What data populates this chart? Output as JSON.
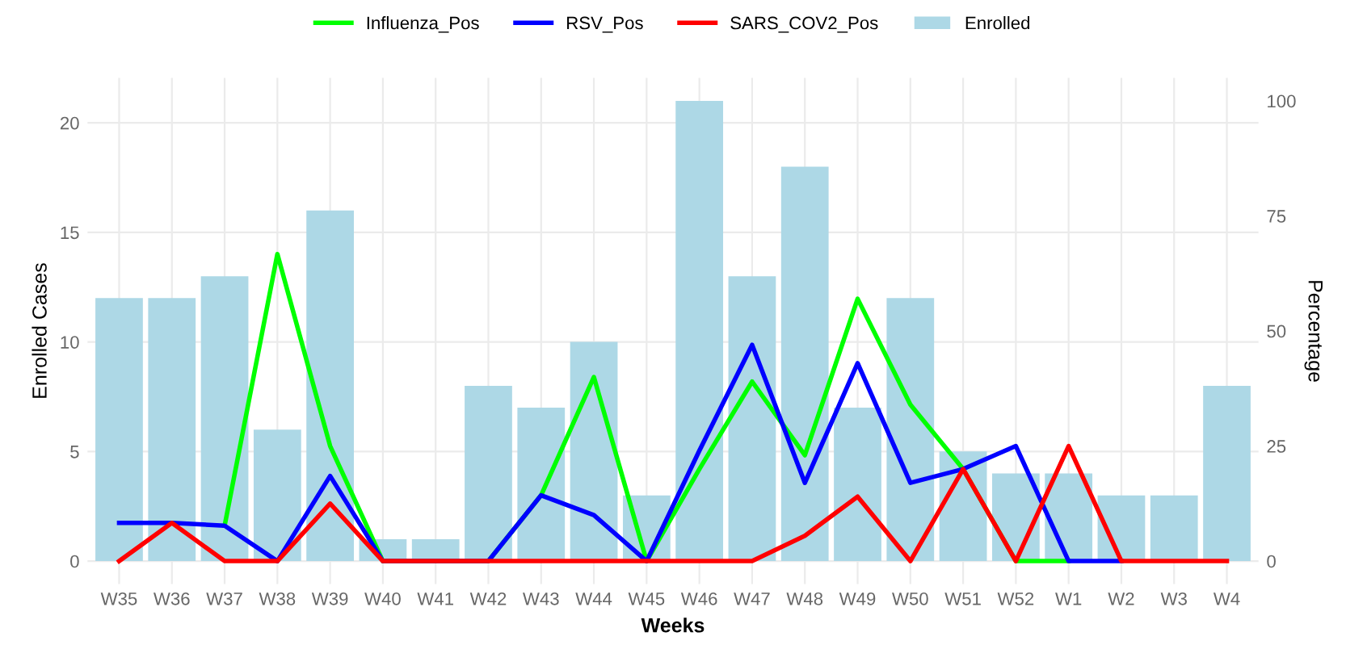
{
  "chart_data": {
    "type": "bar",
    "xlabel": "Weeks",
    "ylabel": "Enrolled Cases",
    "y2label": "Percentage",
    "categories": [
      "W35",
      "W36",
      "W37",
      "W38",
      "W39",
      "W40",
      "W41",
      "W42",
      "W43",
      "W44",
      "W45",
      "W46",
      "W47",
      "W48",
      "W49",
      "W50",
      "W51",
      "W52",
      "W1",
      "W2",
      "W3",
      "W4"
    ],
    "series": [
      {
        "name": "Enrolled",
        "color": "#add8e6",
        "values": [
          12,
          12,
          13,
          6,
          16,
          1,
          1,
          8,
          7,
          10,
          3,
          21,
          13,
          18,
          7,
          12,
          5,
          4,
          4,
          3,
          3,
          8
        ]
      },
      {
        "name": "Influenza_Pos",
        "type": "line",
        "axis": "y2",
        "color": "#00ff00",
        "values": [
          null,
          null,
          7.7,
          66.7,
          25,
          0,
          0,
          0,
          14.3,
          40,
          0,
          20,
          39,
          23,
          57,
          34,
          20,
          0,
          0,
          null,
          null,
          null
        ]
      },
      {
        "name": "RSV_Pos",
        "type": "line",
        "axis": "y2",
        "color": "#0000ff",
        "values": [
          8.3,
          8.3,
          7.7,
          0,
          18.5,
          0,
          0,
          0,
          14.3,
          10,
          0,
          24,
          47,
          17,
          43,
          17,
          20,
          25,
          0,
          0,
          null,
          null
        ]
      },
      {
        "name": "SARS_COV2_Pos",
        "type": "line",
        "axis": "y2",
        "color": "#ff0000",
        "values": [
          0,
          8.3,
          0,
          0,
          12.5,
          0,
          0,
          0,
          0,
          0,
          0,
          0,
          0,
          5.5,
          14,
          0,
          20,
          0,
          25,
          0,
          0,
          0
        ]
      }
    ],
    "ylim": [
      -1.05,
      22.05
    ],
    "yticks": [
      0,
      5,
      10,
      15,
      20
    ],
    "y2lim": [
      -5,
      105
    ],
    "y2ticks": [
      0,
      25,
      50,
      75,
      100
    ],
    "grid": true,
    "legend": "top"
  }
}
